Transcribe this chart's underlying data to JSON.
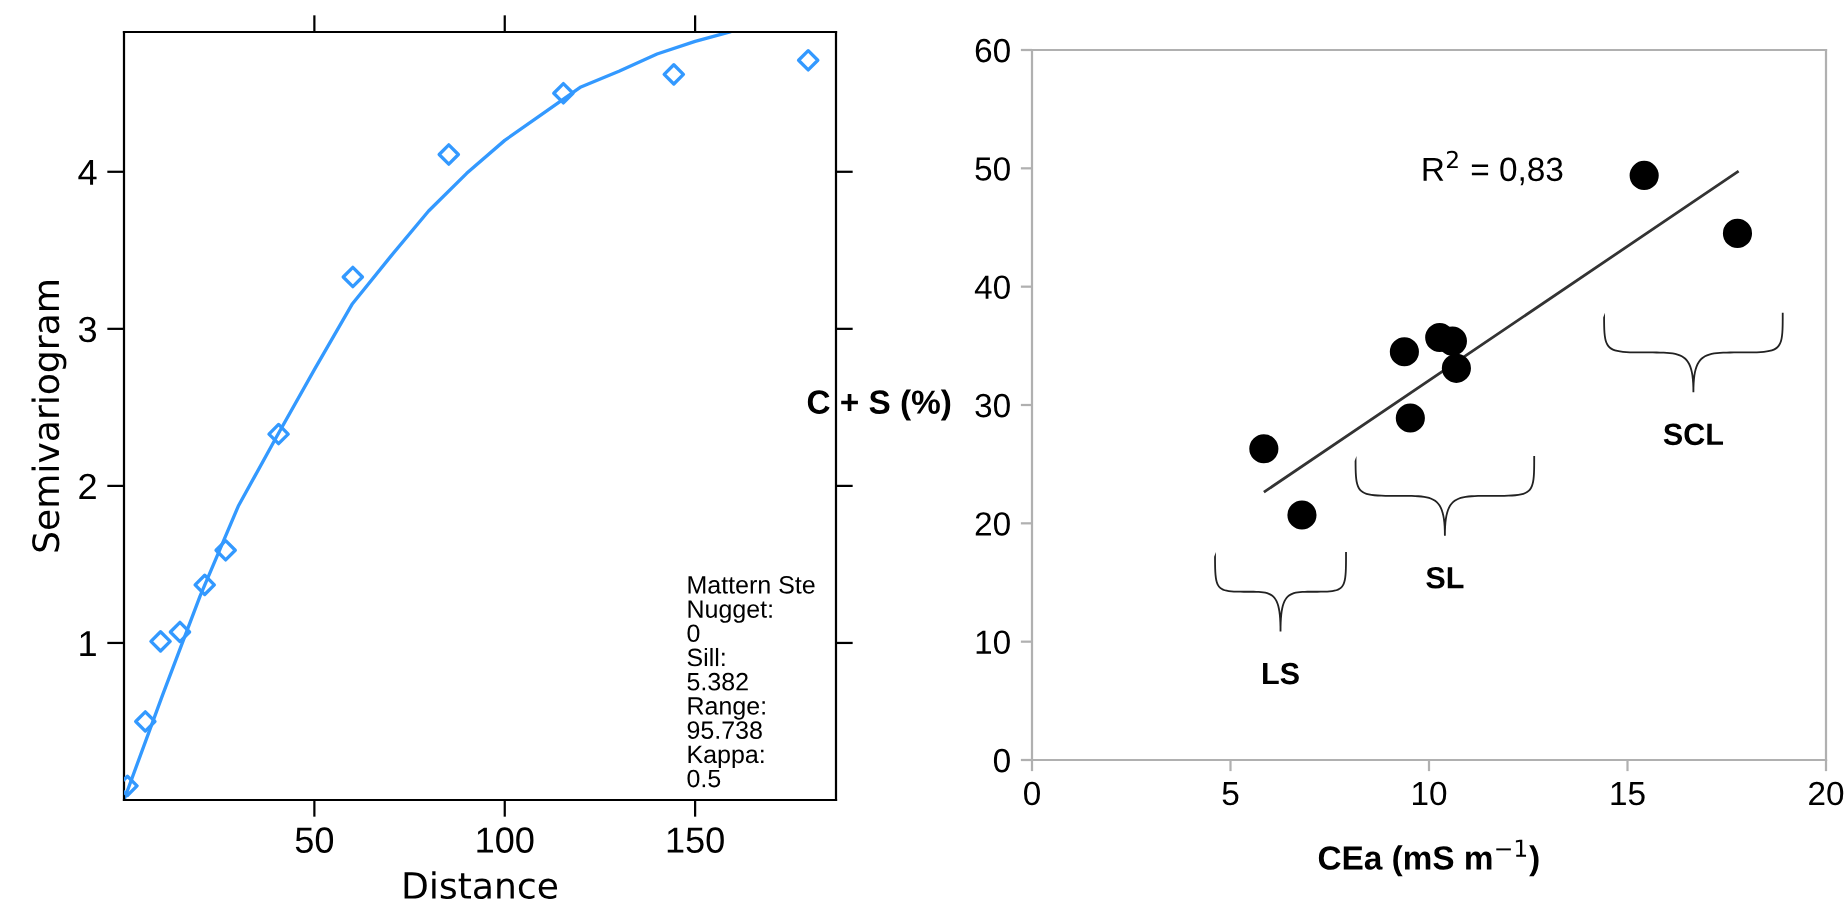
{
  "chart_data": [
    {
      "type": "scatter",
      "xlabel": "Distance",
      "ylabel": "Semivariogram",
      "xlim": [
        0,
        187
      ],
      "ylim": [
        0,
        4.89
      ],
      "xticks": [
        50,
        100,
        150
      ],
      "yticks": [
        1,
        2,
        3,
        4
      ],
      "grid": false,
      "legend": false,
      "series": [
        {
          "marker": "diamond",
          "color": "#3399ff",
          "x": [
            0.9,
            5.6,
            9.6,
            14.7,
            21.2,
            26.7,
            40.6,
            60.1,
            85.3,
            115.4,
            144.4,
            179.7
          ],
          "values": [
            0.09,
            0.5,
            1.01,
            1.07,
            1.37,
            1.59,
            2.33,
            3.33,
            4.11,
            4.5,
            4.62,
            4.71
          ]
        },
        {
          "type": "line",
          "color": "#3399ff",
          "x": [
            0,
            10,
            20,
            30,
            40,
            50,
            60,
            70,
            80,
            90,
            100,
            110,
            120,
            130,
            140,
            150,
            159
          ],
          "values": [
            0,
            0.66,
            1.3,
            1.87,
            2.31,
            2.74,
            3.16,
            3.46,
            3.75,
            3.99,
            4.2,
            4.37,
            4.54,
            4.64,
            4.75,
            4.83,
            4.89
          ]
        }
      ],
      "annotations": [
        "Mattern Ste\nNugget:\n0\nSill:\n5.382\nRange:\n95.738\nKappa:\n0.5"
      ]
    },
    {
      "type": "scatter",
      "xlabel": "CEa (mS m$^{−1}$)",
      "ylabel": "C + S (%)",
      "xlim": [
        0,
        20
      ],
      "ylim": [
        0,
        60
      ],
      "xticks": [
        0,
        5,
        10,
        15,
        20
      ],
      "yticks": [
        0,
        10,
        20,
        30,
        40,
        50,
        60
      ],
      "grid": false,
      "legend": false,
      "series": [
        {
          "marker": "circle",
          "color": "#000000",
          "x": [
            5.84,
            6.8,
            9.38,
            9.53,
            10.27,
            10.59,
            10.69,
            15.42,
            17.77
          ],
          "values": [
            26.3,
            20.7,
            34.5,
            28.9,
            35.7,
            35.4,
            33.1,
            49.4,
            44.5
          ]
        },
        {
          "type": "line",
          "color": "#333333",
          "x": [
            5.87,
            17.77
          ],
          "values": [
            22.7,
            49.7
          ]
        }
      ],
      "annotations": [
        "R$^{2}$ = 0,83",
        "LS",
        "SL",
        "SCL"
      ]
    }
  ]
}
